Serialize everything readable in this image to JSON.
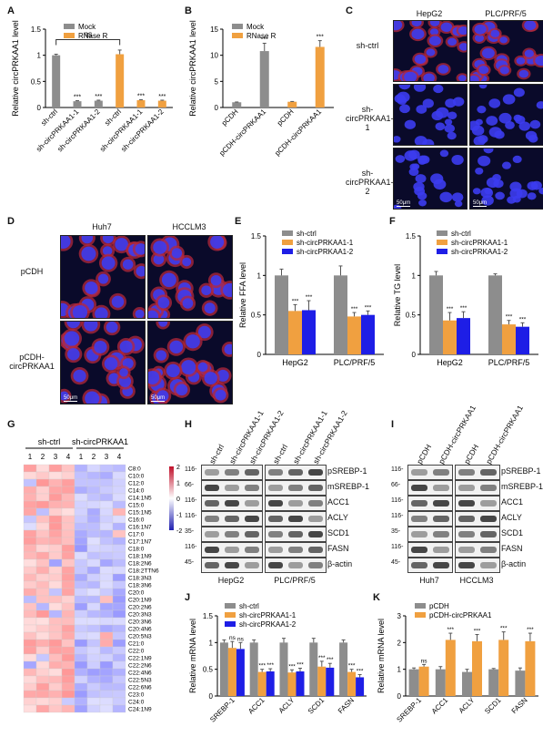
{
  "panels": {
    "A": "A",
    "B": "B",
    "C": "C",
    "D": "D",
    "E": "E",
    "F": "F",
    "G": "G",
    "H": "H",
    "I": "I",
    "J": "J",
    "K": "K"
  },
  "colors": {
    "gray": "#8d8d8d",
    "orange": "#f0a040",
    "blue": "#1e1ee6"
  },
  "ns": "ns",
  "stars": "***",
  "chart_data": [
    {
      "panel": "A",
      "type": "bar",
      "ylabel": "Relative circPRKAA1 level",
      "ylim": [
        0,
        1.5
      ],
      "yticks": [
        0,
        0.5,
        1,
        1.5
      ],
      "categories": [
        "sh-ctrl",
        "sh-circPRKAA1-1",
        "sh-circPRKAA1-2",
        "sh-ctrl",
        "sh-circPRKAA1-1",
        "sh-circPRKAA1-2"
      ],
      "series": [
        {
          "name": "Mock",
          "values": [
            1.0,
            0.12,
            0.13,
            null,
            null,
            null
          ]
        },
        {
          "name": "RNase R",
          "values": [
            null,
            null,
            null,
            1.02,
            0.14,
            0.13
          ]
        }
      ],
      "errors": [
        0.02,
        0.01,
        0.01,
        0.08,
        0.01,
        0.01
      ],
      "annotations": [
        "",
        "***",
        "***",
        "",
        "***",
        "***"
      ],
      "bracket": "ns"
    },
    {
      "panel": "B",
      "type": "bar",
      "ylabel": "Relative circPRKAA1 level",
      "ylim": [
        0,
        15
      ],
      "yticks": [
        0,
        5,
        10,
        15
      ],
      "categories": [
        "pCDH",
        "pCDH-circPRKAA1",
        "pCDH",
        "pCDH-circPRKAA1"
      ],
      "series": [
        {
          "name": "Mock",
          "values": [
            1.0,
            10.8,
            null,
            null
          ]
        },
        {
          "name": "RNase R",
          "values": [
            null,
            null,
            1.1,
            11.6
          ]
        }
      ],
      "errors": [
        0.05,
        1.5,
        0.05,
        1.2
      ],
      "annotations": [
        "",
        "***",
        "",
        "***"
      ]
    },
    {
      "panel": "E",
      "type": "bar",
      "ylabel": "Relative FFA level",
      "ylim": [
        0,
        1.5
      ],
      "yticks": [
        0,
        0.5,
        1,
        1.5
      ],
      "categories": [
        "HepG2",
        "PLC/PRF/5"
      ],
      "series": [
        {
          "name": "sh-ctrl",
          "values": [
            1.0,
            1.0
          ]
        },
        {
          "name": "sh-circPRKAA1-1",
          "values": [
            0.55,
            0.48
          ]
        },
        {
          "name": "sh-circPRKAA1-2",
          "values": [
            0.56,
            0.5
          ]
        }
      ],
      "errors": [
        [
          0.08,
          0.12
        ],
        [
          0.08,
          0.05
        ],
        [
          0.12,
          0.05
        ]
      ],
      "annotations": [
        [
          "",
          "***",
          "***"
        ],
        [
          "",
          "***",
          "***"
        ]
      ]
    },
    {
      "panel": "F",
      "type": "bar",
      "ylabel": "Relative TG level",
      "ylim": [
        0,
        1.5
      ],
      "yticks": [
        0,
        0.5,
        1,
        1.5
      ],
      "categories": [
        "HepG2",
        "PLC/PRF/5"
      ],
      "series": [
        {
          "name": "sh-ctrl",
          "values": [
            1.0,
            1.0
          ]
        },
        {
          "name": "sh-circPRKAA1-1",
          "values": [
            0.43,
            0.38
          ]
        },
        {
          "name": "sh-circPRKAA1-2",
          "values": [
            0.46,
            0.35
          ]
        }
      ],
      "errors": [
        [
          0.05,
          0.02
        ],
        [
          0.1,
          0.05
        ],
        [
          0.08,
          0.05
        ]
      ],
      "annotations": [
        [
          "",
          "***",
          "***"
        ],
        [
          "",
          "***",
          "***"
        ]
      ]
    },
    {
      "panel": "J",
      "type": "bar",
      "ylabel": "Relative mRNA level",
      "ylim": [
        0,
        1.5
      ],
      "yticks": [
        0,
        0.5,
        1,
        1.5
      ],
      "categories": [
        "SREBP-1",
        "ACC1",
        "ACLY",
        "SCD1",
        "FASN"
      ],
      "series": [
        {
          "name": "sh-ctrl",
          "values": [
            1.0,
            1.0,
            1.0,
            1.0,
            1.0
          ]
        },
        {
          "name": "sh-circPRKAA1-1",
          "values": [
            0.9,
            0.45,
            0.44,
            0.55,
            0.45
          ]
        },
        {
          "name": "sh-circPRKAA1-2",
          "values": [
            0.88,
            0.46,
            0.46,
            0.53,
            0.35
          ]
        }
      ],
      "errors": [
        [
          0.05,
          0.05,
          0.08,
          0.08,
          0.05
        ],
        [
          0.12,
          0.05,
          0.05,
          0.1,
          0.05
        ],
        [
          0.12,
          0.05,
          0.06,
          0.08,
          0.05
        ]
      ],
      "annotations": [
        [
          "",
          "ns",
          "ns"
        ],
        [
          "",
          "***",
          "***"
        ],
        [
          "",
          "***",
          "***"
        ],
        [
          "",
          "***",
          "***"
        ],
        [
          "",
          "***",
          "***"
        ]
      ]
    },
    {
      "panel": "K",
      "type": "bar",
      "ylabel": "Relative mRNA level",
      "ylim": [
        0,
        3
      ],
      "yticks": [
        0,
        1,
        2,
        3
      ],
      "categories": [
        "SREBP-1",
        "ACC1",
        "ACLY",
        "SCD1",
        "FASN"
      ],
      "series": [
        {
          "name": "pCDH",
          "values": [
            1.0,
            1.0,
            0.9,
            1.0,
            0.95
          ]
        },
        {
          "name": "pCDH-circPRKAA1",
          "values": [
            1.1,
            2.1,
            2.05,
            2.1,
            2.05
          ]
        }
      ],
      "errors": [
        [
          0.05,
          0.1,
          0.1,
          0.03,
          0.1
        ],
        [
          0.08,
          0.25,
          0.25,
          0.3,
          0.3
        ]
      ],
      "annotations": [
        [
          "",
          "ns"
        ],
        [
          "",
          "***"
        ],
        [
          "",
          "***"
        ],
        [
          "",
          "***"
        ],
        [
          "",
          "***"
        ]
      ]
    },
    {
      "panel": "G",
      "type": "heatmap",
      "legend_ticks": [
        "2",
        "1",
        "0",
        "-1",
        "-2"
      ],
      "groups": [
        "sh-ctrl",
        "sh-circPRKAA1"
      ],
      "columns": [
        "1",
        "2",
        "3",
        "4",
        "1",
        "2",
        "3",
        "4"
      ],
      "rows": [
        "C8:0",
        "C10:0",
        "C12:0",
        "C14:0",
        "C14:1N5",
        "C15:0",
        "C15:1N5",
        "C16:0",
        "C16:1N7",
        "C17:0",
        "C17:1N7",
        "C18:0",
        "C18:1N9",
        "C18:2N6",
        "C18:2TTN6",
        "C18:3N3",
        "C18:3N6",
        "C20:0",
        "C20:1N9",
        "C20:2N6",
        "C20:3N3",
        "C20:3N6",
        "C20:4N6",
        "C20:5N3",
        "C21:0",
        "C22:0",
        "C22:1N9",
        "C22:2N6",
        "C22:4N6",
        "C22:5N3",
        "C22:6N6",
        "C23:0",
        "C24:0",
        "C24:1N9"
      ]
    }
  ],
  "C": {
    "cols": [
      "HepG2",
      "PLC/PRF/5"
    ],
    "rows": [
      "sh-ctrl",
      "sh-\ncircPRKAA1-1",
      "sh-\ncircPRKAA1-2"
    ],
    "scale": "50μm"
  },
  "D": {
    "cols": [
      "Huh7",
      "HCCLM3"
    ],
    "rows": [
      "pCDH",
      "pCDH-\ncircPRKAA1"
    ],
    "scale": "50μm"
  },
  "H": {
    "lanes": [
      "sh-ctrl",
      "sh-circPRKAA1-1",
      "sh-circPRKAA1-2",
      "sh-ctrl",
      "sh-circPRKAA1-1",
      "sh-circPRKAA1-2"
    ],
    "proteins": [
      "pSREBP-1",
      "mSREBP-1",
      "ACC1",
      "ACLY",
      "SCD1",
      "FASN",
      "β-actin"
    ],
    "mw": [
      "116-",
      "66-",
      "116-",
      "116-",
      "35-",
      "116-",
      "45-"
    ],
    "cells": [
      "HepG2",
      "PLC/PRF/5"
    ]
  },
  "I": {
    "lanes": [
      "pCDH",
      "pCDH-circPRKAA1",
      "pCDH",
      "pCDH-circPRKAA1"
    ],
    "proteins": [
      "pSREBP-1",
      "mSREBP-1",
      "ACC1",
      "ACLY",
      "SCD1",
      "FASN",
      "β-actin"
    ],
    "mw": [
      "116-",
      "66-",
      "116-",
      "116-",
      "35-",
      "116-",
      "45-"
    ],
    "cells": [
      "Huh7",
      "HCCLM3"
    ]
  }
}
